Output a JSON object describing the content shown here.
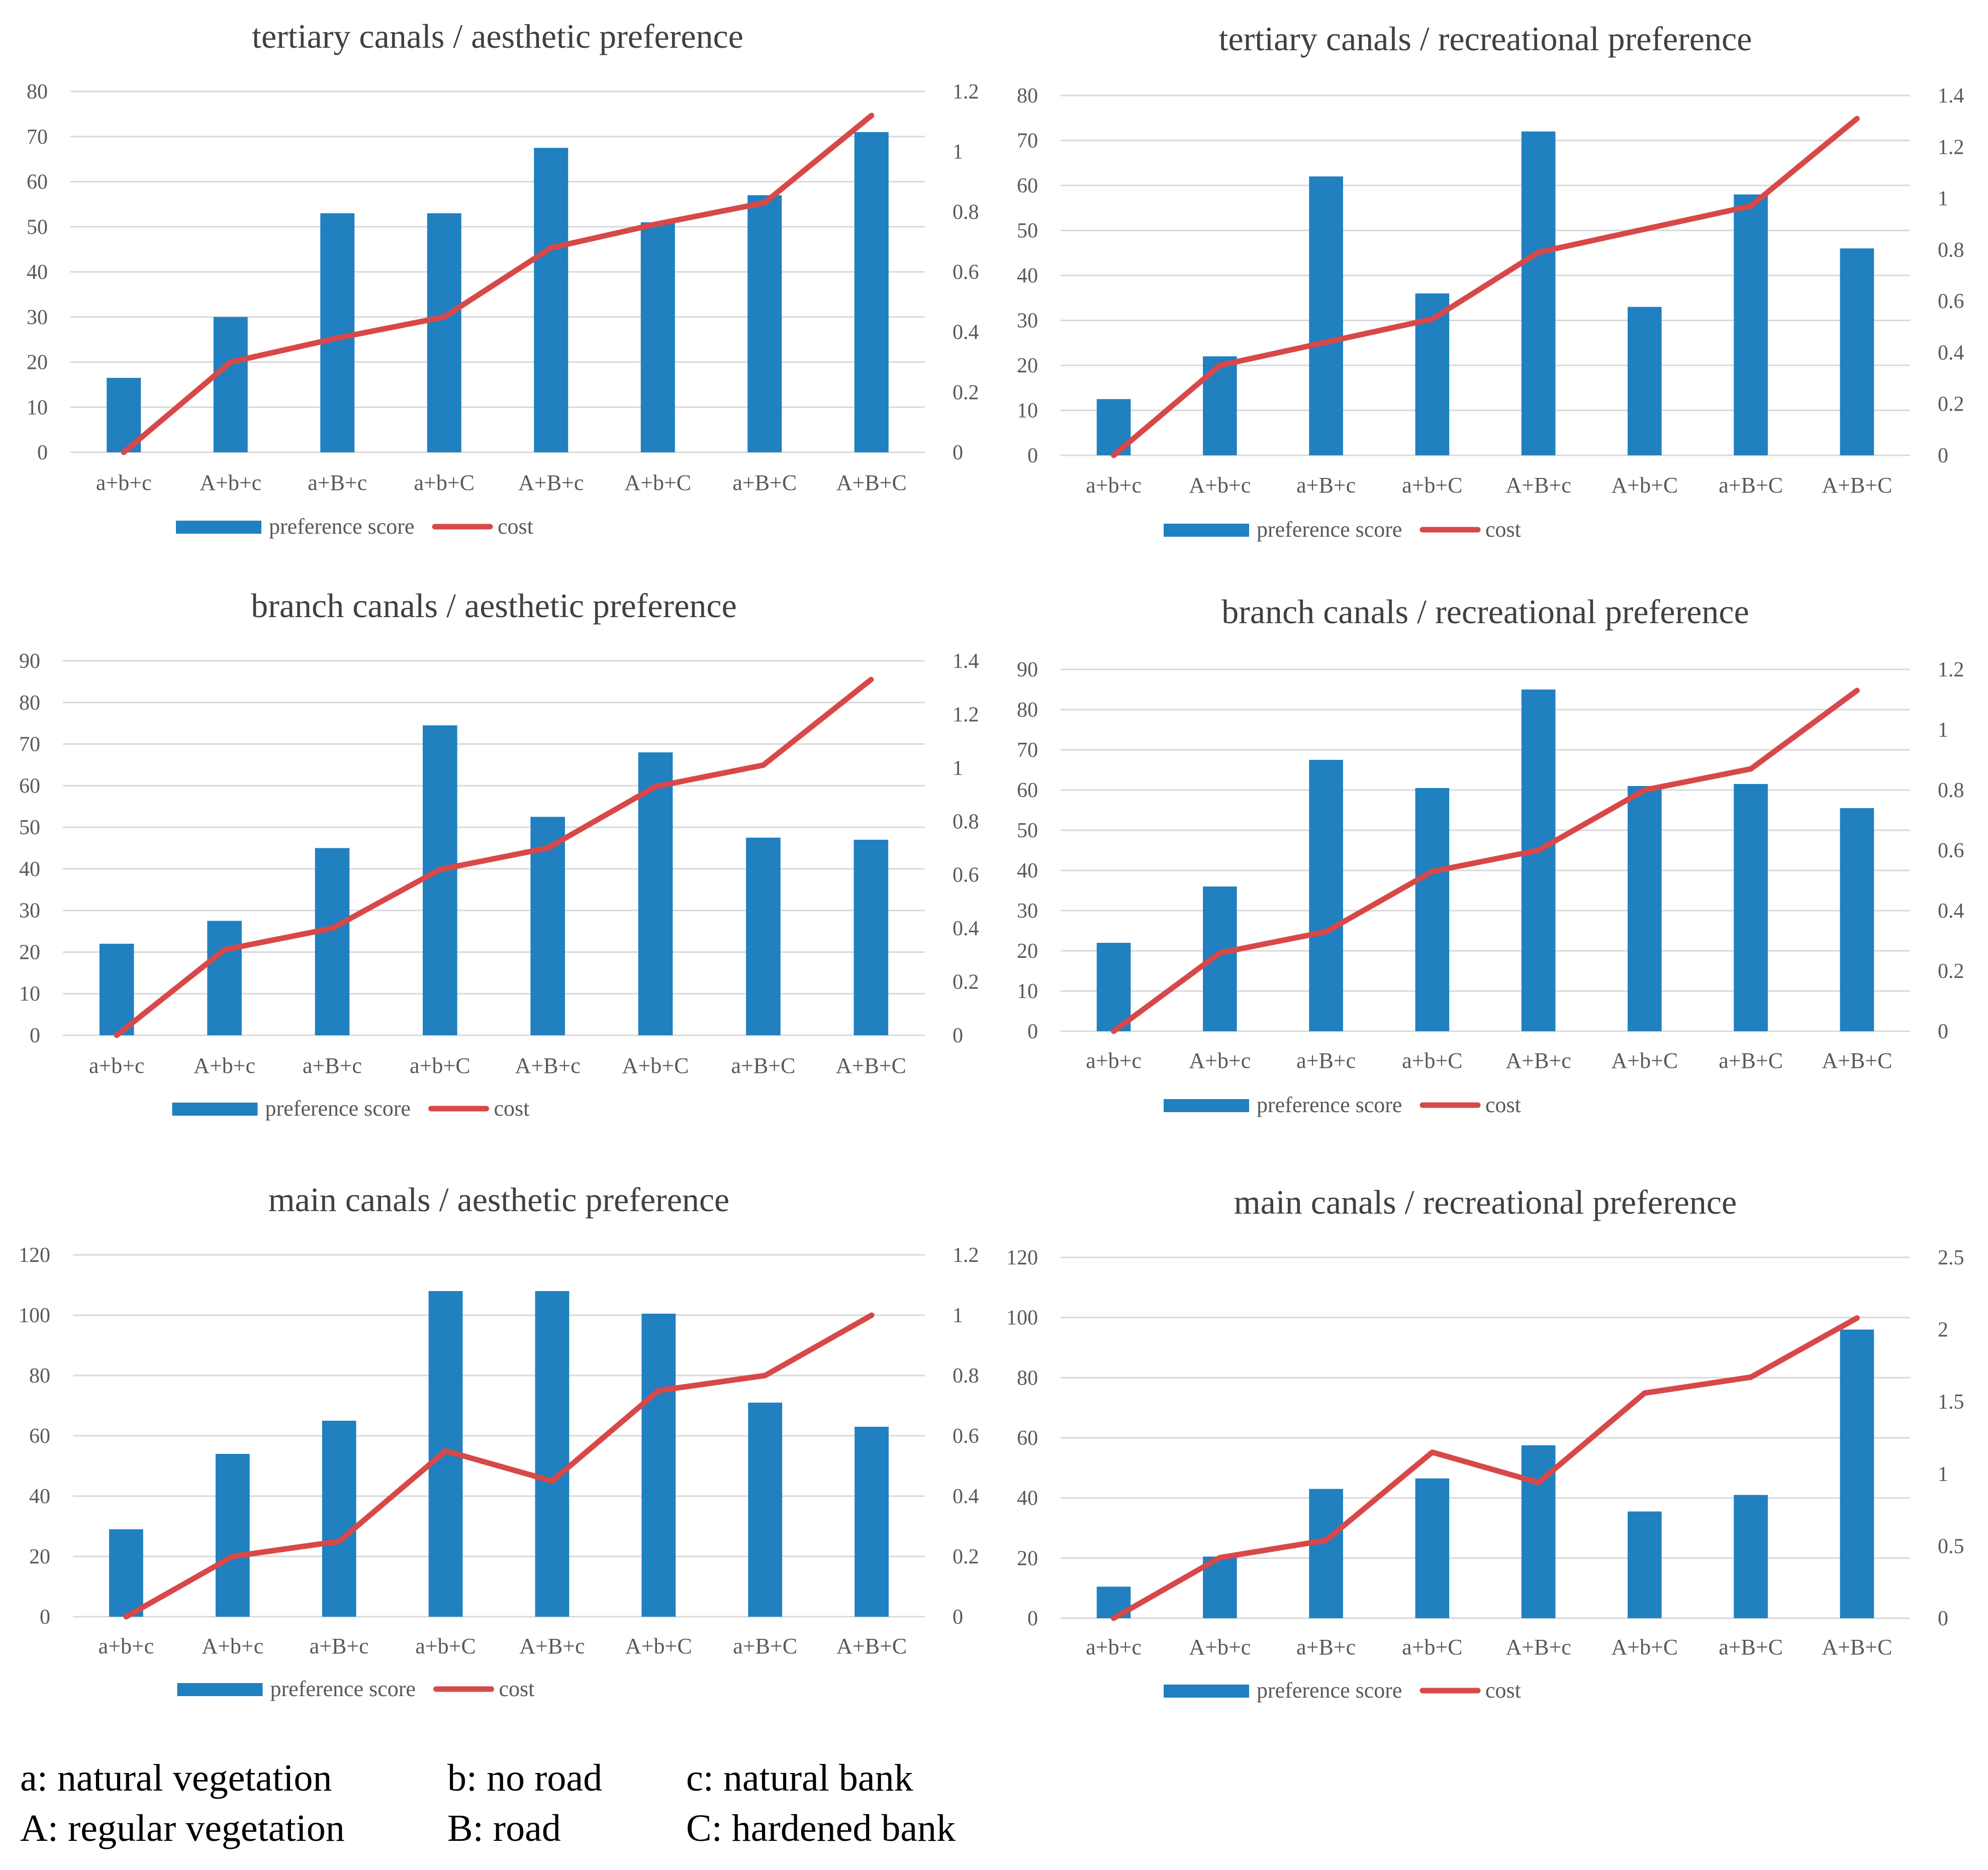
{
  "chart_data": [
    {
      "type": "bar",
      "title": "tertiary canals  / aesthetic preference",
      "categories": [
        "a+b+c",
        "A+b+c",
        "a+B+c",
        "a+b+C",
        "A+B+c",
        "A+b+C",
        "a+B+C",
        "A+B+C"
      ],
      "series": [
        {
          "name": "preference score",
          "kind": "bar",
          "axis": "left",
          "color": "#2080C0",
          "values": [
            16.5,
            30,
            53,
            53,
            67.5,
            51,
            57,
            71
          ]
        },
        {
          "name": "cost",
          "kind": "line",
          "axis": "right",
          "color": "#D84848",
          "values": [
            0,
            0.3,
            0.38,
            0.45,
            0.68,
            0.76,
            0.83,
            1.12
          ]
        }
      ],
      "ylim": [
        0,
        80
      ],
      "yticks": [
        0,
        10,
        20,
        30,
        40,
        50,
        60,
        70,
        80
      ],
      "ylim_right": [
        0,
        1.2
      ],
      "yticks_right": [
        0,
        0.2,
        0.4,
        0.6,
        0.8,
        1,
        1.2
      ],
      "legend": [
        "preference  score",
        "cost"
      ]
    },
    {
      "type": "bar",
      "title": "tertiary canals  / recreational preference",
      "categories": [
        "a+b+c",
        "A+b+c",
        "a+B+c",
        "a+b+C",
        "A+B+c",
        "A+b+C",
        "a+B+C",
        "A+B+C"
      ],
      "series": [
        {
          "name": "preference score",
          "kind": "bar",
          "axis": "left",
          "color": "#2080C0",
          "values": [
            12.5,
            22,
            62,
            36,
            72,
            33,
            58,
            46
          ]
        },
        {
          "name": "cost",
          "kind": "line",
          "axis": "right",
          "color": "#D84848",
          "values": [
            0,
            0.35,
            0.44,
            0.53,
            0.79,
            0.88,
            0.97,
            1.31
          ]
        }
      ],
      "ylim": [
        0,
        80
      ],
      "yticks": [
        0,
        10,
        20,
        30,
        40,
        50,
        60,
        70,
        80
      ],
      "ylim_right": [
        0,
        1.4
      ],
      "yticks_right": [
        0,
        0.2,
        0.4,
        0.6,
        0.8,
        1,
        1.2,
        1.4
      ],
      "legend": [
        "preference  score",
        "cost"
      ]
    },
    {
      "type": "bar",
      "title": "branch  canals  / aesthetic preference",
      "categories": [
        "a+b+c",
        "A+b+c",
        "a+B+c",
        "a+b+C",
        "A+B+c",
        "A+b+C",
        "a+B+C",
        "A+B+C"
      ],
      "series": [
        {
          "name": "preference score",
          "kind": "bar",
          "axis": "left",
          "color": "#2080C0",
          "values": [
            22,
            27.5,
            45,
            74.5,
            52.5,
            68,
            47.5,
            47
          ]
        },
        {
          "name": "cost",
          "kind": "line",
          "axis": "right",
          "color": "#D84848",
          "values": [
            0,
            0.32,
            0.4,
            0.62,
            0.7,
            0.93,
            1.01,
            1.33
          ]
        }
      ],
      "ylim": [
        0,
        90
      ],
      "yticks": [
        0,
        10,
        20,
        30,
        40,
        50,
        60,
        70,
        80,
        90
      ],
      "ylim_right": [
        0,
        1.4
      ],
      "yticks_right": [
        0,
        0.2,
        0.4,
        0.6,
        0.8,
        1,
        1.2,
        1.4
      ],
      "legend": [
        "preference  score",
        "cost"
      ]
    },
    {
      "type": "bar",
      "title": "branch  canals  / recreational preference",
      "categories": [
        "a+b+c",
        "A+b+c",
        "a+B+c",
        "a+b+C",
        "A+B+c",
        "A+b+C",
        "a+B+C",
        "A+B+C"
      ],
      "series": [
        {
          "name": "preference score",
          "kind": "bar",
          "axis": "left",
          "color": "#2080C0",
          "values": [
            22,
            36,
            67.5,
            60.5,
            85,
            61,
            61.5,
            55.5
          ]
        },
        {
          "name": "cost",
          "kind": "line",
          "axis": "right",
          "color": "#D84848",
          "values": [
            0,
            0.26,
            0.33,
            0.53,
            0.6,
            0.8,
            0.87,
            1.13
          ]
        }
      ],
      "ylim": [
        0,
        90
      ],
      "yticks": [
        0,
        10,
        20,
        30,
        40,
        50,
        60,
        70,
        80,
        90
      ],
      "ylim_right": [
        0,
        1.2
      ],
      "yticks_right": [
        0,
        0.2,
        0.4,
        0.6,
        0.8,
        1,
        1.2
      ],
      "legend": [
        "preference  score",
        "cost"
      ]
    },
    {
      "type": "bar",
      "title": "main  canals  / aesthetic preference",
      "categories": [
        "a+b+c",
        "A+b+c",
        "a+B+c",
        "a+b+C",
        "A+B+c",
        "A+b+C",
        "a+B+C",
        "A+B+C"
      ],
      "series": [
        {
          "name": "preference score",
          "kind": "bar",
          "axis": "left",
          "color": "#2080C0",
          "values": [
            29,
            54,
            65,
            108,
            108,
            100.5,
            71,
            63
          ]
        },
        {
          "name": "cost",
          "kind": "line",
          "axis": "right",
          "color": "#D84848",
          "values": [
            0,
            0.2,
            0.25,
            0.55,
            0.45,
            0.75,
            0.8,
            1
          ]
        }
      ],
      "ylim": [
        0,
        120
      ],
      "yticks": [
        0,
        20,
        40,
        60,
        80,
        100,
        120
      ],
      "ylim_right": [
        0,
        1.2
      ],
      "yticks_right": [
        0,
        0.2,
        0.4,
        0.6,
        0.8,
        1,
        1.2
      ],
      "legend": [
        "preference  score",
        "cost"
      ]
    },
    {
      "type": "bar",
      "title": "main  canals  / recreational preference",
      "categories": [
        "a+b+c",
        "A+b+c",
        "a+B+c",
        "a+b+C",
        "A+B+c",
        "A+b+C",
        "a+B+C",
        "A+B+C"
      ],
      "series": [
        {
          "name": "preference score",
          "kind": "bar",
          "axis": "left",
          "color": "#2080C0",
          "values": [
            10.5,
            20.5,
            43,
            46.5,
            57.5,
            35.5,
            41,
            96
          ]
        },
        {
          "name": "cost",
          "kind": "line",
          "axis": "right",
          "color": "#D84848",
          "values": [
            0,
            0.42,
            0.54,
            1.15,
            0.94,
            1.56,
            1.67,
            2.08
          ]
        }
      ],
      "ylim": [
        0,
        120
      ],
      "yticks": [
        0,
        20,
        40,
        60,
        80,
        100,
        120
      ],
      "ylim_right": [
        0,
        2.5
      ],
      "yticks_right": [
        0,
        0.5,
        1,
        1.5,
        2,
        2.5
      ],
      "legend": [
        "preference  score",
        "cost"
      ]
    }
  ],
  "key": [
    [
      "a: natural vegetation",
      "b: no road",
      "c: natural bank"
    ],
    [
      "A: regular vegetation",
      "B: road",
      "C: hardened bank"
    ]
  ]
}
